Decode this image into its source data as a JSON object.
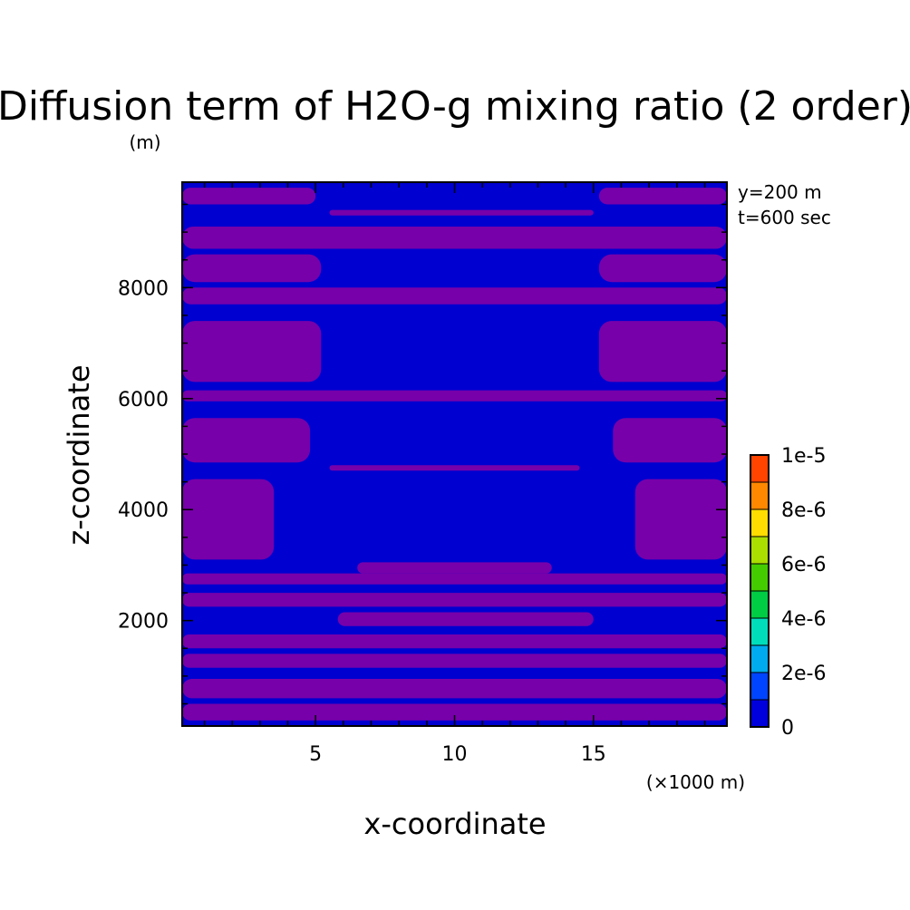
{
  "chart_data": {
    "type": "heatmap",
    "title": "Diffusion term of H2O-g mixing ratio (2 order)",
    "xlabel": "x-coordinate",
    "ylabel": "z-coordinate",
    "x_unit": "(×1000 m)",
    "y_unit": "(m)",
    "annotations": [
      "y=200 m",
      "t=600 sec"
    ],
    "xlim": [
      0.2,
      19.8
    ],
    "ylim": [
      100,
      9900
    ],
    "x_ticks": [
      5,
      10,
      15
    ],
    "y_ticks": [
      2000,
      4000,
      6000,
      8000
    ],
    "colorbar": {
      "levels": [
        0,
        1e-06,
        2e-06,
        3e-06,
        4e-06,
        5e-06,
        6e-06,
        7e-06,
        8e-06,
        9e-06,
        1e-05
      ],
      "colors": [
        "#0000dd",
        "#0044ff",
        "#00aaee",
        "#00ddbb",
        "#00cc44",
        "#44cc00",
        "#aadd00",
        "#ffdd00",
        "#ff8800",
        "#ff4400"
      ],
      "tick_labels": [
        "0",
        "2e-6",
        "4e-6",
        "6e-6",
        "8e-6",
        "1e-5"
      ]
    },
    "field_colors": {
      "low": "#0000d0",
      "band": "#7700aa"
    },
    "band_segments": [
      {
        "z": [
          9500,
          9800
        ],
        "x": [
          0.2,
          5.0
        ]
      },
      {
        "z": [
          9500,
          9800
        ],
        "x": [
          15.2,
          19.8
        ]
      },
      {
        "z": [
          9300,
          9400
        ],
        "x": [
          5.5,
          15.0
        ]
      },
      {
        "z": [
          8700,
          9100
        ],
        "x": [
          0.2,
          19.8
        ]
      },
      {
        "z": [
          8100,
          8600
        ],
        "x": [
          0.2,
          5.2
        ]
      },
      {
        "z": [
          8100,
          8600
        ],
        "x": [
          15.2,
          19.8
        ]
      },
      {
        "z": [
          7700,
          8000
        ],
        "x": [
          0.2,
          19.8
        ]
      },
      {
        "z": [
          6300,
          7400
        ],
        "x": [
          0.2,
          5.2
        ]
      },
      {
        "z": [
          6300,
          7400
        ],
        "x": [
          15.2,
          19.8
        ]
      },
      {
        "z": [
          5950,
          6150
        ],
        "x": [
          0.2,
          19.8
        ]
      },
      {
        "z": [
          4850,
          5650
        ],
        "x": [
          0.2,
          4.8
        ]
      },
      {
        "z": [
          4850,
          5650
        ],
        "x": [
          15.7,
          19.8
        ]
      },
      {
        "z": [
          4700,
          4800
        ],
        "x": [
          5.5,
          14.5
        ]
      },
      {
        "z": [
          3100,
          4550
        ],
        "x": [
          0.2,
          3.5
        ]
      },
      {
        "z": [
          3100,
          4550
        ],
        "x": [
          16.5,
          19.8
        ]
      },
      {
        "z": [
          2850,
          3050
        ],
        "x": [
          6.5,
          13.5
        ]
      },
      {
        "z": [
          2650,
          2850
        ],
        "x": [
          0.2,
          19.8
        ]
      },
      {
        "z": [
          2250,
          2500
        ],
        "x": [
          0.2,
          19.8
        ]
      },
      {
        "z": [
          1900,
          2150
        ],
        "x": [
          5.8,
          15.0
        ]
      },
      {
        "z": [
          1500,
          1750
        ],
        "x": [
          0.2,
          19.8
        ]
      },
      {
        "z": [
          1150,
          1400
        ],
        "x": [
          0.2,
          19.8
        ]
      },
      {
        "z": [
          600,
          950
        ],
        "x": [
          0.2,
          19.8
        ]
      },
      {
        "z": [
          200,
          500
        ],
        "x": [
          0.2,
          19.8
        ]
      }
    ]
  }
}
